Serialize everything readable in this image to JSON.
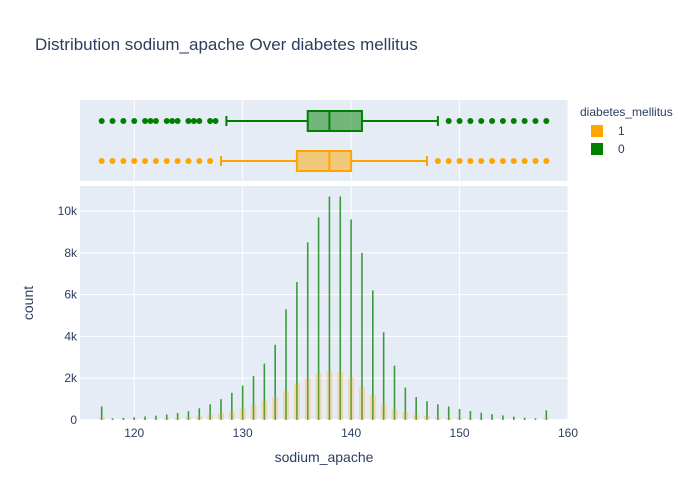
{
  "chart_data": {
    "type": "histogram_with_boxplot",
    "title": "Distribution sodium_apache Over diabetes mellitus",
    "xlabel": "sodium_apache",
    "ylabel": "count",
    "xlim": [
      115,
      160
    ],
    "ylim": [
      0,
      11200
    ],
    "x_ticks": [
      120,
      130,
      140,
      150,
      160
    ],
    "y_ticks": [
      0,
      2000,
      4000,
      6000,
      8000,
      10000
    ],
    "y_tick_labels": [
      "0",
      "2k",
      "4k",
      "6k",
      "8k",
      "10k"
    ],
    "grid": true,
    "legend_position": "top-right",
    "legend_title": "diabetes_mellitus",
    "series": [
      {
        "name": "1",
        "color": "#FFA500",
        "box": {
          "q1": 135,
          "median": 138,
          "q3": 140,
          "lower_fence": 128,
          "upper_fence": 147,
          "outliers": [
            117,
            118,
            119,
            120,
            121,
            122,
            123,
            124,
            125,
            126,
            127,
            148,
            149,
            150,
            151,
            152,
            153,
            154,
            155,
            156,
            157,
            158
          ]
        },
        "histogram": {
          "x": [
            117,
            118,
            119,
            120,
            121,
            122,
            123,
            124,
            125,
            126,
            127,
            128,
            129,
            130,
            131,
            132,
            133,
            134,
            135,
            136,
            137,
            138,
            139,
            140,
            141,
            142,
            143,
            144,
            145,
            146,
            147,
            148,
            149,
            150,
            151,
            152,
            153,
            154,
            155,
            156,
            157,
            158
          ],
          "counts": [
            130,
            20,
            30,
            40,
            50,
            60,
            80,
            100,
            130,
            180,
            250,
            330,
            430,
            560,
            720,
            900,
            1100,
            1400,
            1750,
            2000,
            2200,
            2350,
            2300,
            2050,
            1600,
            1200,
            800,
            520,
            380,
            260,
            190,
            140,
            100,
            80,
            60,
            40,
            30,
            25,
            15,
            10,
            8,
            90
          ]
        }
      },
      {
        "name": "0",
        "color": "#008000",
        "box": {
          "q1": 136,
          "median": 138,
          "q3": 141,
          "lower_fence": 128.5,
          "upper_fence": 148,
          "outliers": [
            117,
            118,
            119,
            120,
            121,
            121.5,
            122,
            123,
            123.5,
            124,
            125,
            125.5,
            126,
            127,
            127.5,
            149,
            150,
            151,
            152,
            153,
            154,
            155,
            156,
            157,
            158
          ]
        },
        "histogram": {
          "x": [
            117,
            118,
            119,
            120,
            121,
            122,
            123,
            124,
            125,
            126,
            127,
            128,
            129,
            130,
            131,
            132,
            133,
            134,
            135,
            136,
            137,
            138,
            139,
            140,
            141,
            142,
            143,
            144,
            145,
            146,
            147,
            148,
            149,
            150,
            151,
            152,
            153,
            154,
            155,
            156,
            157,
            158
          ],
          "counts": [
            650,
            80,
            100,
            130,
            170,
            210,
            260,
            330,
            420,
            560,
            750,
            1000,
            1300,
            1650,
            2100,
            2700,
            3600,
            5300,
            6600,
            8500,
            9700,
            10700,
            10700,
            9600,
            8000,
            6200,
            4200,
            2600,
            1550,
            1100,
            900,
            750,
            650,
            530,
            430,
            350,
            280,
            220,
            160,
            110,
            80,
            460
          ]
        }
      }
    ]
  }
}
